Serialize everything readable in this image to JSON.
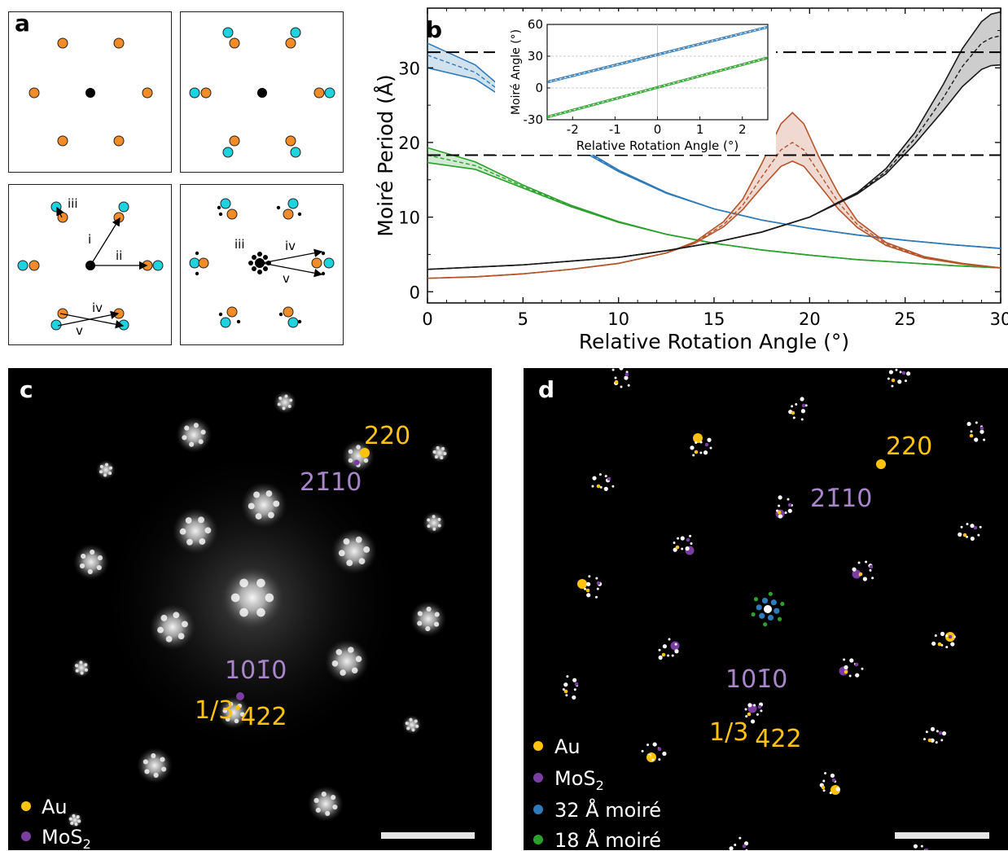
{
  "panels": {
    "a": {
      "label": "a",
      "vector_labels": [
        "iii",
        "i",
        "ii",
        "iv",
        "v",
        "iii",
        "iv",
        "v"
      ]
    },
    "b": {
      "label": "b"
    },
    "c": {
      "label": "c"
    },
    "d": {
      "label": "d"
    }
  },
  "colors": {
    "au": "#f28c28",
    "mos2_a": "#1ed3e0",
    "gold": "#ffc20e",
    "purple": "#7a3ea0",
    "blue": "#2f7ab8",
    "green": "#2ca02c",
    "copper": "#b5542a",
    "black": "#1a1a1a"
  },
  "chart_data": {
    "type": "line",
    "xlabel": "Relative Rotation Angle (°)",
    "ylabel": "Moiré Period (Å)",
    "xlim": [
      0,
      30
    ],
    "ylim": [
      -1.5,
      38
    ],
    "xticks": [
      0,
      5,
      10,
      15,
      20,
      25,
      30
    ],
    "yticks": [
      0,
      10,
      20,
      30
    ],
    "hlines": [
      32.1,
      18.3
    ],
    "series": [
      {
        "color": "blue",
        "x": [
          0,
          2.5,
          5,
          7.5,
          10,
          12.5,
          15,
          17.5,
          20,
          22.5,
          25,
          27.5,
          30
        ],
        "y": [
          31.7,
          29.4,
          24.6,
          19.9,
          16.2,
          13.2,
          11.1,
          9.6,
          8.5,
          7.6,
          6.9,
          6.3,
          5.8
        ],
        "lower": [
          30.0,
          28.5,
          24.3,
          19.7,
          16.1,
          13.2,
          11.1,
          9.6,
          8.5,
          7.6,
          6.9,
          6.3,
          5.8
        ],
        "upper": [
          33.3,
          30.4,
          24.9,
          20.1,
          16.3,
          13.3,
          11.1,
          9.6,
          8.5,
          7.6,
          6.9,
          6.3,
          5.8
        ]
      },
      {
        "color": "green",
        "x": [
          0,
          2.5,
          5,
          7.5,
          10,
          12.5,
          15,
          17.5,
          20,
          22.5,
          25,
          27.5,
          30
        ],
        "y": [
          18.3,
          16.9,
          14.1,
          11.5,
          9.3,
          7.7,
          6.5,
          5.6,
          4.9,
          4.3,
          3.9,
          3.5,
          3.2
        ],
        "lower": [
          17.3,
          16.4,
          13.9,
          11.4,
          9.3,
          7.7,
          6.5,
          5.6,
          4.9,
          4.3,
          3.9,
          3.5,
          3.2
        ],
        "upper": [
          19.3,
          17.4,
          14.3,
          11.6,
          9.4,
          7.7,
          6.5,
          5.6,
          4.9,
          4.3,
          3.9,
          3.5,
          3.2
        ]
      },
      {
        "color": "copper",
        "x": [
          0,
          2.5,
          5,
          7.5,
          10,
          12.5,
          14,
          15.5,
          16.5,
          17.5,
          18.5,
          19.1,
          19.7,
          20.5,
          21.5,
          22.5,
          24,
          26,
          28,
          30
        ],
        "y": [
          1.8,
          2.0,
          2.4,
          3.0,
          3.8,
          5.2,
          6.6,
          9.0,
          11.6,
          15.4,
          19.0,
          20.0,
          19.0,
          15.9,
          12.0,
          9.0,
          6.4,
          4.6,
          3.7,
          3.2
        ],
        "lower": [
          1.8,
          2.0,
          2.4,
          3.0,
          3.8,
          5.2,
          6.5,
          8.7,
          11.0,
          14.0,
          16.8,
          17.5,
          16.8,
          14.3,
          11.1,
          8.6,
          6.2,
          4.5,
          3.7,
          3.2
        ],
        "upper": [
          1.8,
          2.0,
          2.4,
          3.0,
          3.8,
          5.2,
          6.7,
          9.4,
          12.4,
          17.2,
          22.5,
          24.0,
          22.5,
          18.0,
          13.2,
          9.5,
          6.6,
          4.7,
          3.8,
          3.2
        ]
      },
      {
        "color": "black",
        "x": [
          0,
          5,
          10,
          12.5,
          15,
          17.5,
          20,
          22.5,
          24,
          25.5,
          27,
          28,
          29,
          29.5,
          30
        ],
        "y": [
          3.0,
          3.6,
          4.6,
          5.5,
          6.6,
          8.0,
          10.0,
          13.2,
          16.1,
          20.5,
          26.0,
          30.2,
          33.3,
          34.0,
          34.3
        ],
        "lower": [
          3.0,
          3.6,
          4.6,
          5.5,
          6.6,
          8.0,
          10.0,
          13.1,
          15.8,
          19.8,
          24.3,
          27.5,
          29.8,
          30.3,
          30.4
        ],
        "upper": [
          3.0,
          3.6,
          4.6,
          5.5,
          6.6,
          8.0,
          10.0,
          13.3,
          16.5,
          21.3,
          27.8,
          32.6,
          36.2,
          37.2,
          37.5
        ]
      }
    ],
    "inset": {
      "xlabel": "Relative Rotation Angle (°)",
      "ylabel": "Moiré Angle (°)",
      "xlim": [
        -2.6,
        2.6
      ],
      "ylim": [
        -30,
        60
      ],
      "xticks": [
        -2,
        -1,
        0,
        1,
        2
      ],
      "yticks": [
        -30,
        0,
        30,
        60
      ],
      "hlines": [
        30
      ],
      "series": [
        {
          "color": "blue",
          "x": [
            -2.6,
            2.6
          ],
          "y": [
            5.5,
            57.5
          ]
        },
        {
          "color": "green",
          "x": [
            -2.6,
            2.6
          ],
          "y": [
            -27.5,
            28.5
          ]
        }
      ]
    }
  },
  "panel_c": {
    "annotations": {
      "au_spot": "220",
      "mos2_spot": "21̄10",
      "mos2_spot2": "101̄0",
      "au_spot2_frac": "1/3",
      "au_spot2": "422"
    },
    "legend": [
      {
        "label": "Au",
        "color": "gold"
      },
      {
        "label": "MoS",
        "sub": "2",
        "color": "purple"
      }
    ]
  },
  "panel_d": {
    "annotations": {
      "au_spot": "220",
      "mos2_spot": "21̄10",
      "mos2_spot2": "101̄0",
      "au_spot2_frac": "1/3",
      "au_spot2": "422"
    },
    "legend": [
      {
        "label": "Au",
        "color": "gold"
      },
      {
        "label": "MoS",
        "sub": "2",
        "color": "purple"
      },
      {
        "label": "32 Å moiré",
        "color": "blue"
      },
      {
        "label": "18 Å moiré",
        "color": "green"
      }
    ]
  }
}
